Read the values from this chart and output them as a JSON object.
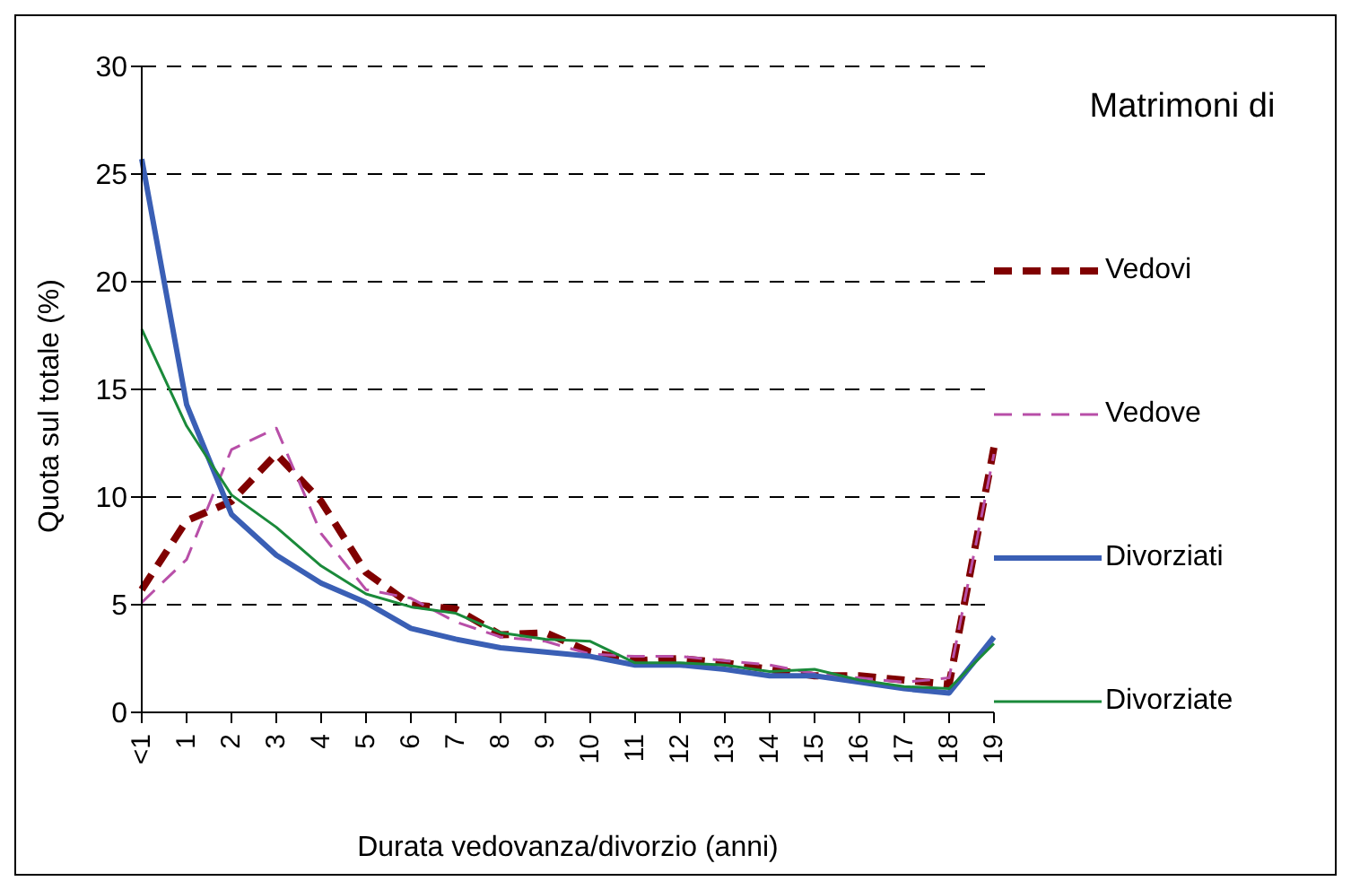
{
  "chart_data": {
    "type": "line",
    "xlabel": "Durata vedovanza/divorzio (anni)",
    "ylabel": "Quota sul totale (%)",
    "legend_title": "Matrimoni di",
    "legend": "right",
    "grid": "y",
    "marker": "none",
    "categories": [
      "<1",
      "1",
      "2",
      "3",
      "4",
      "5",
      "6",
      "7",
      "8",
      "9",
      "10",
      "11",
      "12",
      "13",
      "14",
      "15",
      "16",
      "17",
      "18",
      "19"
    ],
    "ylim": [
      0,
      30
    ],
    "yticks": [
      0,
      5,
      10,
      15,
      20,
      25,
      30
    ],
    "series": [
      {
        "name": "Vedovi",
        "color": "#800000",
        "line_style": "dashed",
        "values": [
          5.7,
          8.9,
          9.8,
          12.0,
          9.8,
          6.5,
          5.0,
          4.8,
          3.6,
          3.7,
          2.8,
          2.4,
          2.5,
          2.3,
          2.0,
          1.7,
          1.7,
          1.5,
          1.3,
          12.3
        ]
      },
      {
        "name": "Vedove",
        "color": "#b84fa8",
        "line_style": "dashed",
        "values": [
          5.1,
          7.1,
          12.2,
          13.2,
          8.3,
          5.7,
          5.3,
          4.2,
          3.5,
          3.3,
          2.7,
          2.6,
          2.6,
          2.4,
          2.2,
          1.8,
          1.6,
          1.4,
          1.6,
          12.0
        ]
      },
      {
        "name": "Divorziati",
        "color": "#3a5fb5",
        "line_style": "solid",
        "values": [
          25.7,
          14.3,
          9.2,
          7.3,
          6.0,
          5.1,
          3.9,
          3.4,
          3.0,
          2.8,
          2.6,
          2.2,
          2.2,
          2.0,
          1.7,
          1.7,
          1.4,
          1.1,
          0.9,
          3.5
        ]
      },
      {
        "name": "Divorziate",
        "color": "#1a8a3a",
        "line_style": "solid",
        "values": [
          17.8,
          13.3,
          10.1,
          8.6,
          6.8,
          5.5,
          4.9,
          4.6,
          3.7,
          3.4,
          3.3,
          2.3,
          2.3,
          2.2,
          1.9,
          2.0,
          1.5,
          1.2,
          1.1,
          3.2
        ]
      }
    ]
  }
}
